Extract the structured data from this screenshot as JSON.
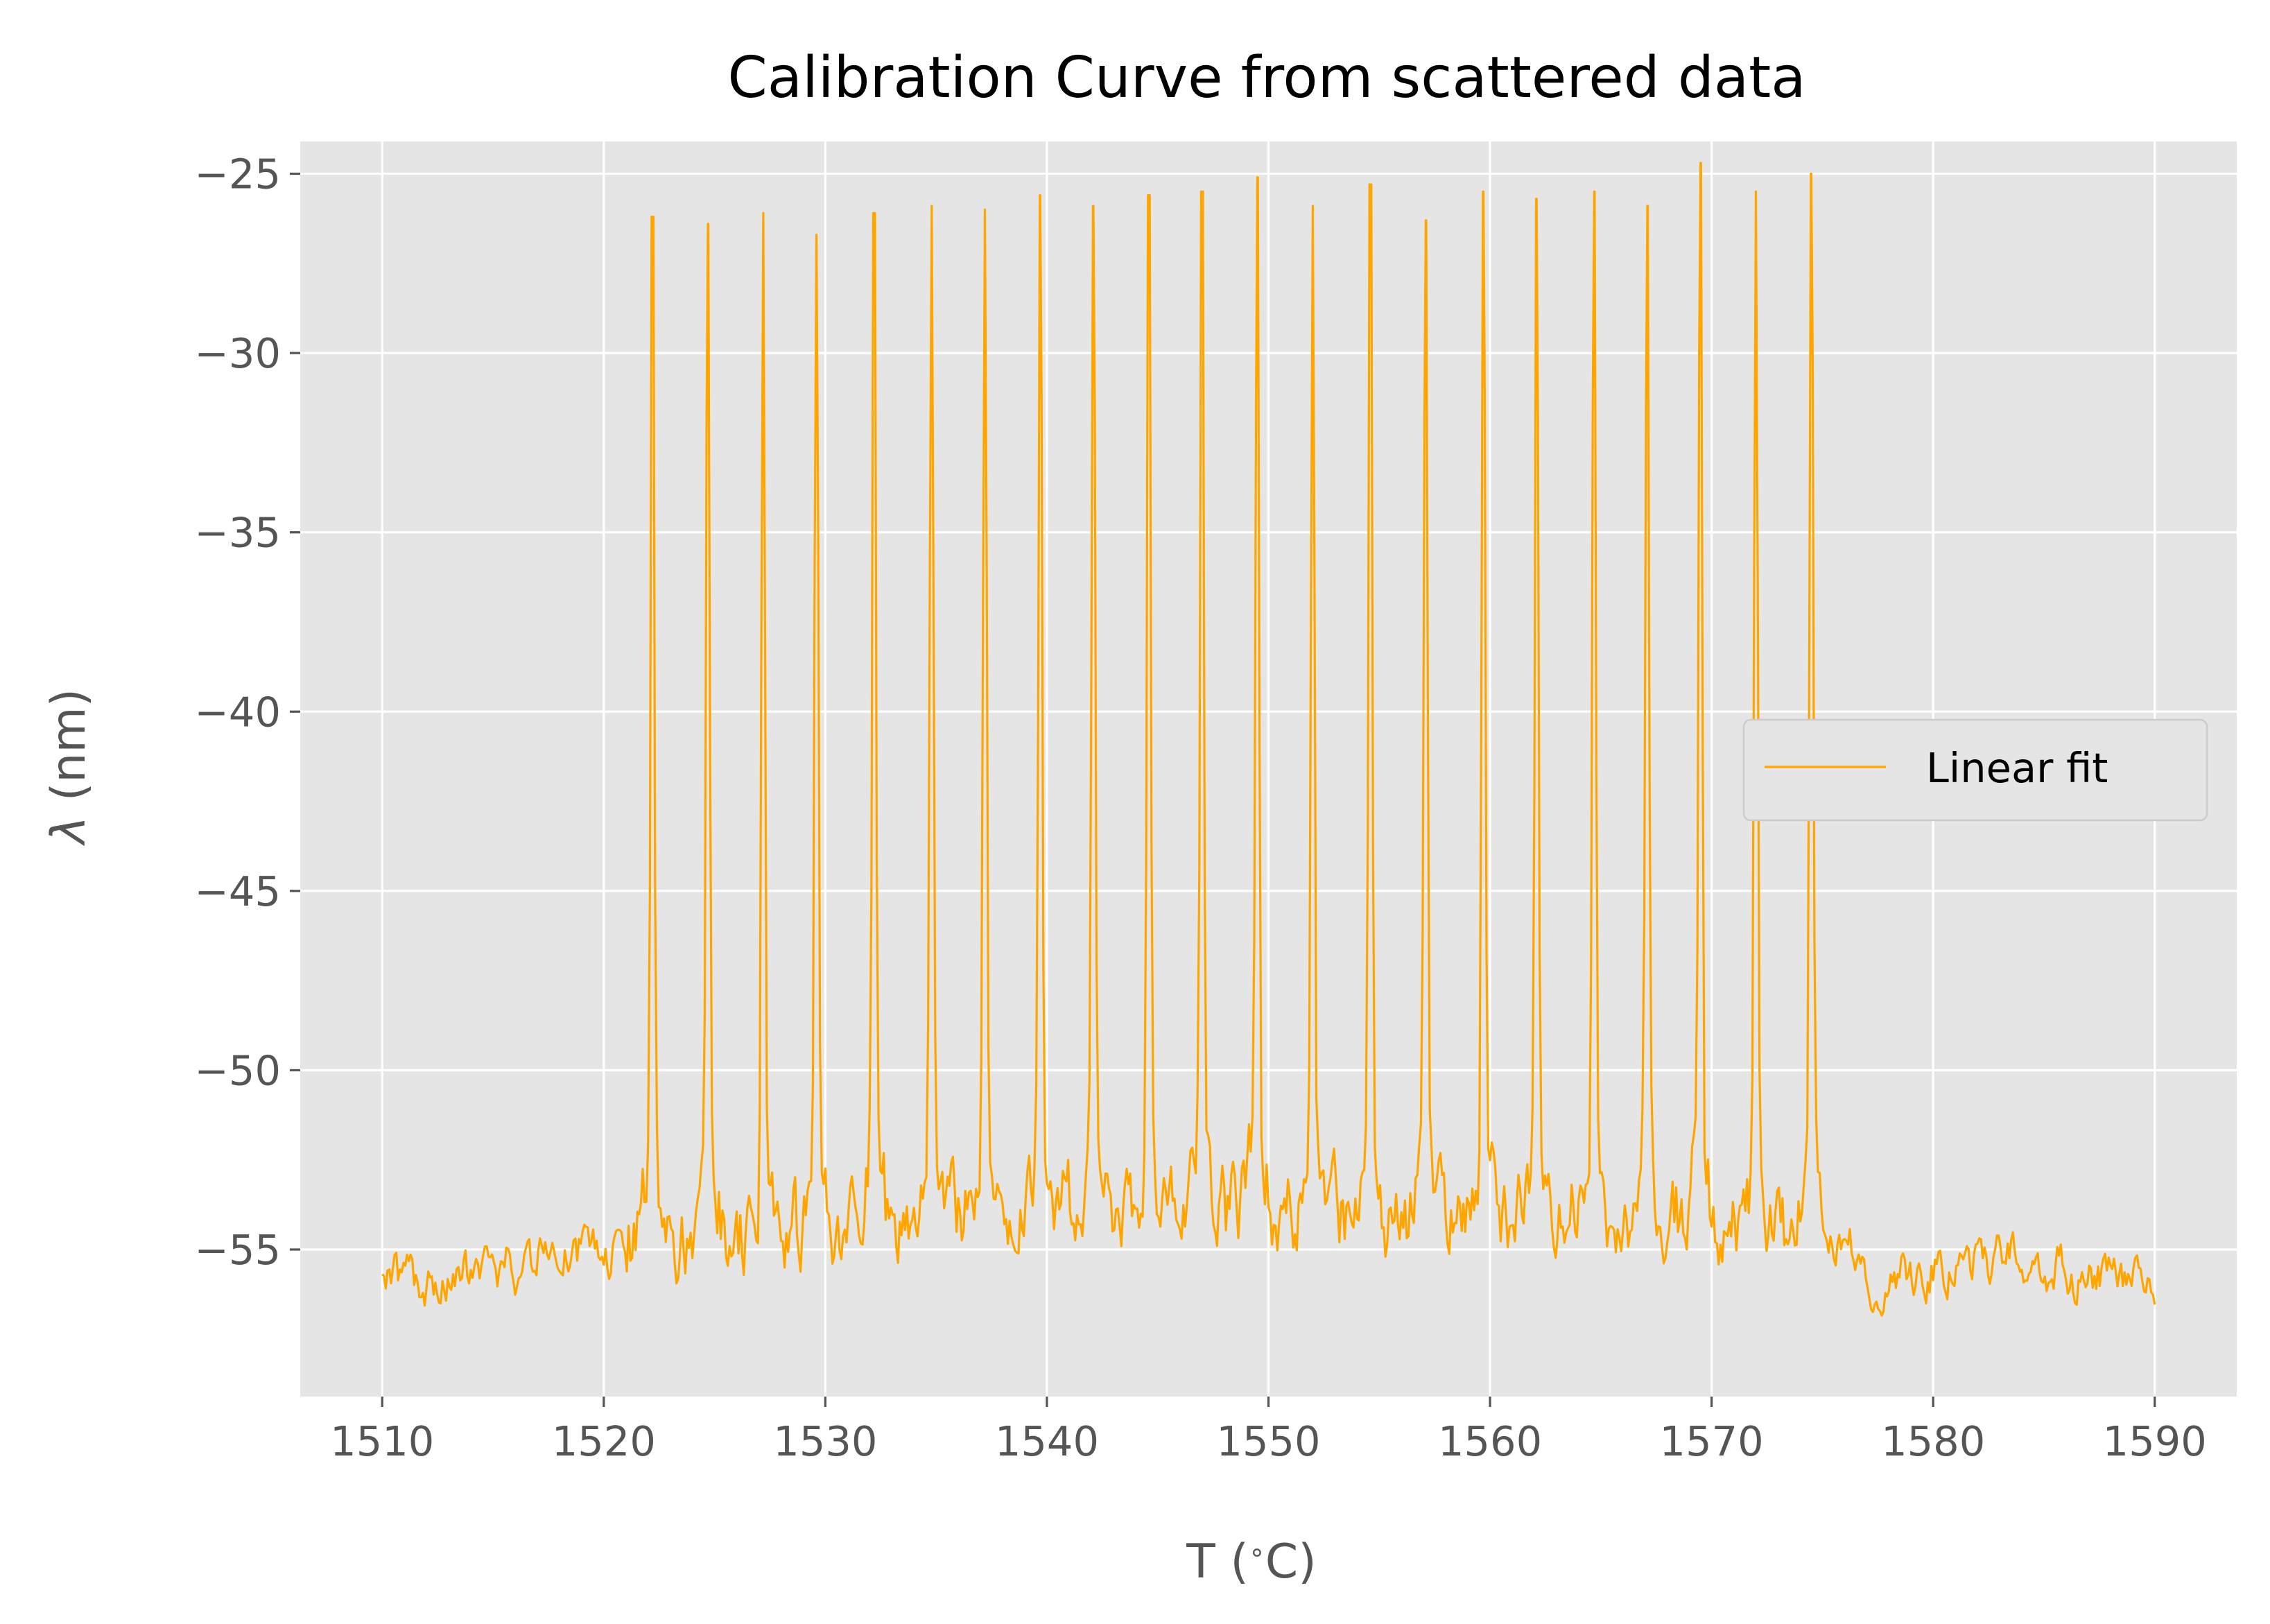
{
  "chart_data": {
    "type": "line",
    "title": "Calibration Curve from scattered data",
    "xlabel": "T ($^\\circ$C)",
    "xlabel_text": "T (",
    "xlabel_degree": "∘",
    "xlabel_unit": "C)",
    "ylabel_symbol": "λ",
    "ylabel_unit": " (nm)",
    "xlim": [
      1506.3,
      1593.7
    ],
    "ylim": [
      -59.1,
      -24.1
    ],
    "xticks": [
      1510,
      1520,
      1530,
      1540,
      1550,
      1560,
      1570,
      1580,
      1590
    ],
    "xtick_labels": [
      "1510",
      "1520",
      "1530",
      "1540",
      "1550",
      "1560",
      "1570",
      "1580",
      "1590"
    ],
    "yticks": [
      -55,
      -50,
      -45,
      -40,
      -35,
      -30,
      -25
    ],
    "ytick_labels": [
      "−55",
      "−50",
      "−45",
      "−40",
      "−35",
      "−30",
      "−25"
    ],
    "grid": true,
    "legend_position": "center right",
    "colors": {
      "line": "#FFA500",
      "plot_background": "#E5E5E5",
      "grid": "#FFFFFF",
      "legend_border": "#CCCCCC"
    },
    "series": [
      {
        "name": "Linear fit",
        "x_range": [
          1510,
          1590
        ],
        "baseline_profile": [
          [
            1510,
            -55.8
          ],
          [
            1515,
            -55.6
          ],
          [
            1520,
            -55.0
          ],
          [
            1521,
            -54.8
          ],
          [
            1549,
            -54.0
          ],
          [
            1576,
            -54.6
          ],
          [
            1577,
            -55.8
          ],
          [
            1584,
            -55.2
          ],
          [
            1590,
            -56.2
          ]
        ],
        "peaks": [
          {
            "x": 1522.2,
            "y": -26.2
          },
          {
            "x": 1524.7,
            "y": -26.4
          },
          {
            "x": 1527.2,
            "y": -26.1
          },
          {
            "x": 1529.6,
            "y": -26.7
          },
          {
            "x": 1532.2,
            "y": -26.1
          },
          {
            "x": 1534.8,
            "y": -25.9
          },
          {
            "x": 1537.2,
            "y": -26.0
          },
          {
            "x": 1539.7,
            "y": -25.6
          },
          {
            "x": 1542.1,
            "y": -25.9
          },
          {
            "x": 1544.6,
            "y": -25.6
          },
          {
            "x": 1547.0,
            "y": -25.5
          },
          {
            "x": 1549.5,
            "y": -25.1
          },
          {
            "x": 1552.0,
            "y": -25.9
          },
          {
            "x": 1554.6,
            "y": -25.3
          },
          {
            "x": 1557.1,
            "y": -26.3
          },
          {
            "x": 1559.7,
            "y": -25.5
          },
          {
            "x": 1562.1,
            "y": -25.7
          },
          {
            "x": 1564.7,
            "y": -25.5
          },
          {
            "x": 1567.1,
            "y": -25.9
          },
          {
            "x": 1569.5,
            "y": -24.7
          },
          {
            "x": 1572.0,
            "y": -25.5
          },
          {
            "x": 1574.5,
            "y": -25.0
          }
        ]
      }
    ]
  }
}
